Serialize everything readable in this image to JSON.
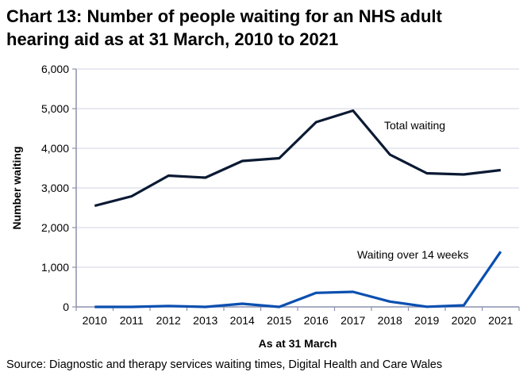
{
  "title_lines": [
    "Chart 13: Number of people waiting for an NHS adult",
    "hearing aid as at 31 March, 2010 to 2021"
  ],
  "source": "Source: Diagnostic and therapy services waiting times, Digital Health and Care Wales",
  "chart_data": {
    "type": "line",
    "title": "Chart 13: Number of people waiting for an NHS adult hearing aid as at 31 March, 2010 to 2021",
    "xlabel": "As at 31 March",
    "ylabel": "Number waiting",
    "categories": [
      "2010",
      "2011",
      "2012",
      "2013",
      "2014",
      "2015",
      "2016",
      "2017",
      "2018",
      "2019",
      "2020",
      "2021"
    ],
    "ylim": [
      0,
      6000
    ],
    "yticks": [
      0,
      1000,
      2000,
      3000,
      4000,
      5000,
      6000
    ],
    "ytick_labels": [
      "0",
      "1,000",
      "2,000",
      "3,000",
      "4,000",
      "5,000",
      "6,000"
    ],
    "grid": true,
    "legend": "inline labels",
    "series": [
      {
        "name": "Total waiting",
        "color": "#0b1a33",
        "values": [
          2550,
          2790,
          3310,
          3260,
          3680,
          3750,
          4660,
          4950,
          3840,
          3370,
          3340,
          3450
        ]
      },
      {
        "name": "Waiting over 14 weeks",
        "color": "#0a4fb0",
        "values": [
          0,
          0,
          25,
          0,
          80,
          0,
          355,
          380,
          135,
          5,
          40,
          1395
        ]
      }
    ]
  }
}
